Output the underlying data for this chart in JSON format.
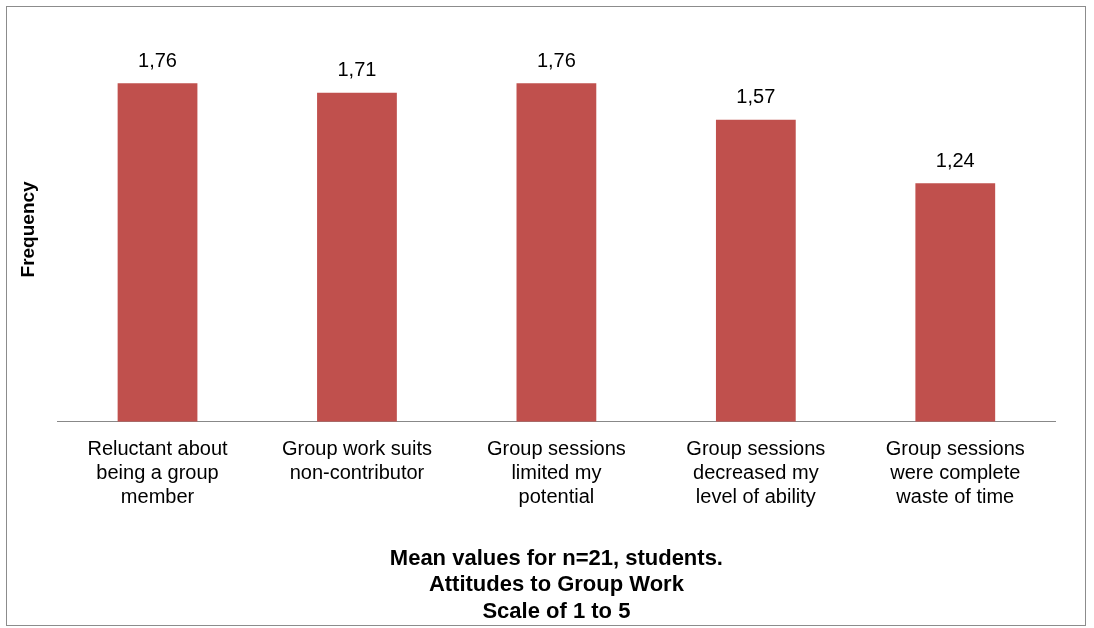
{
  "chart_data": {
    "type": "bar",
    "ylabel": "Frequency",
    "xlabel": "Mean values for n=21, students.\nAttitudes to Group Work\nScale of 1 to 5",
    "categories": [
      "Reluctant about being a group member",
      "Group work suits non-contributor",
      "Group sessions limited my potential",
      "Group sessions decreased my level of ability",
      "Group sessions were complete waste of time"
    ],
    "values": [
      1.76,
      1.71,
      1.76,
      1.57,
      1.24
    ],
    "value_labels": [
      "1,76",
      "1,71",
      "1,76",
      "1,57",
      "1,24"
    ],
    "color": "#c0504d",
    "grid": false,
    "legend": false,
    "tick_labels": "x"
  }
}
